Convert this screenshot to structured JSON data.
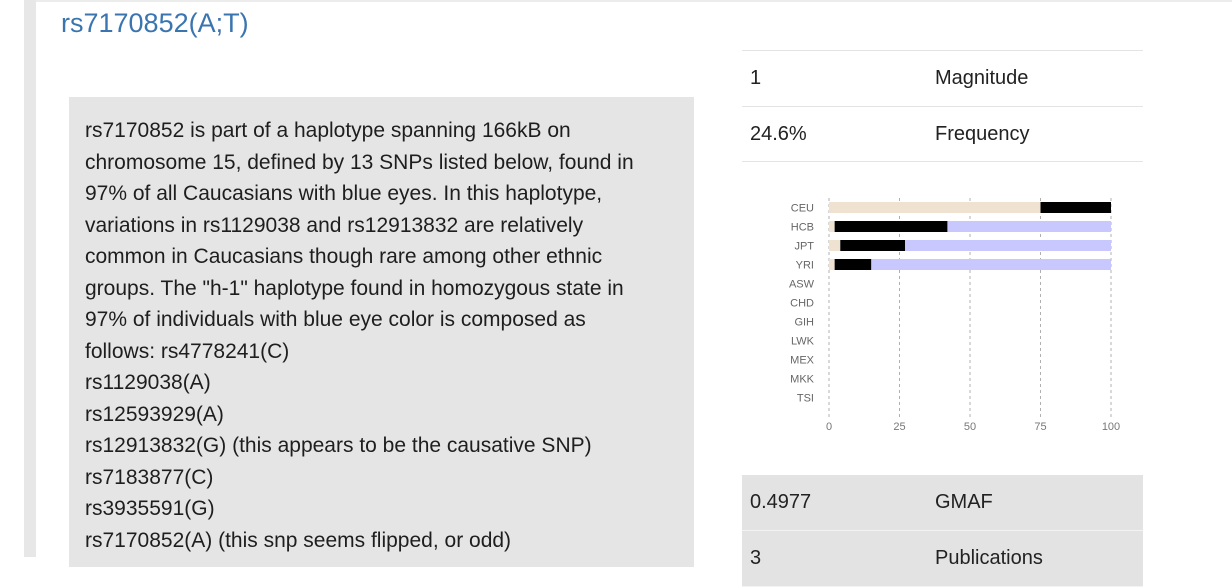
{
  "title": "rs7170852(A;T)",
  "description": {
    "lines": [
      "rs7170852 is part of a haplotype spanning 166kB on",
      "chromosome 15, defined by 13 SNPs listed below, found in",
      "97% of all Caucasians with blue eyes. In this haplotype,",
      "variations in rs1129038 and rs12913832 are relatively",
      "common in Caucasians though rare among other ethnic",
      "groups. The \"h-1\" haplotype found in homozygous state in",
      "97% of individuals with blue eye color is composed as",
      "follows: rs4778241(C)",
      "rs1129038(A)",
      "rs12593929(A)",
      "rs12913832(G) (this appears to be the causative SNP)",
      "rs7183877(C)",
      "rs3935591(G)",
      "rs7170852(A) (this snp seems flipped, or odd)"
    ]
  },
  "facts_top": [
    {
      "value": "1",
      "label": "Magnitude"
    },
    {
      "value": "24.6%",
      "label": "Frequency"
    }
  ],
  "facts_bottom": [
    {
      "value": "0.4977",
      "label": "GMAF"
    },
    {
      "value": "3",
      "label": "Publications"
    }
  ],
  "chart_data": {
    "type": "bar",
    "stacked": true,
    "orientation": "horizontal",
    "categories": [
      "CEU",
      "HCB",
      "JPT",
      "YRI",
      "ASW",
      "CHD",
      "GIH",
      "LWK",
      "MEX",
      "MKK",
      "TSI"
    ],
    "series": [
      {
        "color": "#f0e2d0",
        "values": [
          75,
          2,
          4,
          2,
          null,
          null,
          null,
          null,
          null,
          null,
          null
        ]
      },
      {
        "color": "#000000",
        "values": [
          25,
          40,
          23,
          13,
          null,
          null,
          null,
          null,
          null,
          null,
          null
        ]
      },
      {
        "color": "#c8c8ff",
        "values": [
          0,
          58,
          73,
          85,
          null,
          null,
          null,
          null,
          null,
          null,
          null
        ]
      }
    ],
    "xlim": [
      0,
      100
    ],
    "xticks": [
      0,
      25,
      50,
      75,
      100
    ],
    "grid": "dashed-vertical"
  },
  "colors": {
    "title": "#3a75b0",
    "description_bg": "#e5e5e5",
    "bottom_facts_bg": "#e3e3e3"
  }
}
